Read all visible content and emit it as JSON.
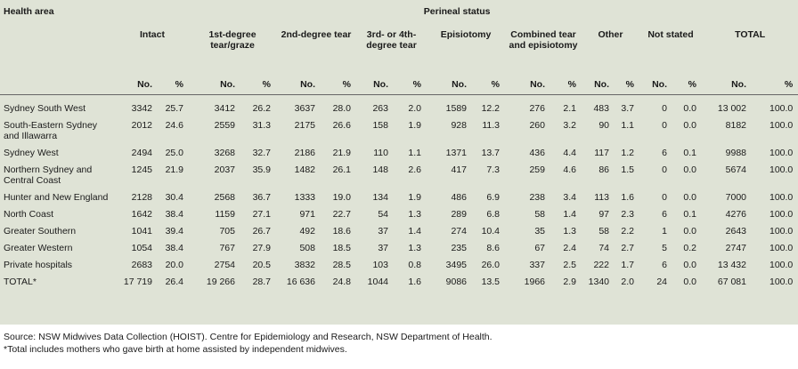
{
  "header": {
    "health_area": "Health area",
    "perineal_status": "Perineal status",
    "groups": [
      "Intact",
      "1st-degree tear/graze",
      "2nd-degree tear",
      "3rd- or 4th-degree tear",
      "Episiotomy",
      "Combined tear and episiotomy",
      "Other",
      "Not stated",
      "TOTAL"
    ],
    "no_label": "No.",
    "pct_label": "%"
  },
  "rows": [
    {
      "area": "Sydney South West",
      "cells": [
        "3342",
        "25.7",
        "3412",
        "26.2",
        "3637",
        "28.0",
        "263",
        "2.0",
        "1589",
        "12.2",
        "276",
        "2.1",
        "483",
        "3.7",
        "0",
        "0.0",
        "13 002",
        "100.0"
      ]
    },
    {
      "area": "South-Eastern Sydney and Illawarra",
      "cells": [
        "2012",
        "24.6",
        "2559",
        "31.3",
        "2175",
        "26.6",
        "158",
        "1.9",
        "928",
        "11.3",
        "260",
        "3.2",
        "90",
        "1.1",
        "0",
        "0.0",
        "8182",
        "100.0"
      ]
    },
    {
      "area": "Sydney West",
      "cells": [
        "2494",
        "25.0",
        "3268",
        "32.7",
        "2186",
        "21.9",
        "110",
        "1.1",
        "1371",
        "13.7",
        "436",
        "4.4",
        "117",
        "1.2",
        "6",
        "0.1",
        "9988",
        "100.0"
      ]
    },
    {
      "area": "Northern Sydney and Central Coast",
      "cells": [
        "1245",
        "21.9",
        "2037",
        "35.9",
        "1482",
        "26.1",
        "148",
        "2.6",
        "417",
        "7.3",
        "259",
        "4.6",
        "86",
        "1.5",
        "0",
        "0.0",
        "5674",
        "100.0"
      ]
    },
    {
      "area": "Hunter and New England",
      "cells": [
        "2128",
        "30.4",
        "2568",
        "36.7",
        "1333",
        "19.0",
        "134",
        "1.9",
        "486",
        "6.9",
        "238",
        "3.4",
        "113",
        "1.6",
        "0",
        "0.0",
        "7000",
        "100.0"
      ]
    },
    {
      "area": "North Coast",
      "cells": [
        "1642",
        "38.4",
        "1159",
        "27.1",
        "971",
        "22.7",
        "54",
        "1.3",
        "289",
        "6.8",
        "58",
        "1.4",
        "97",
        "2.3",
        "6",
        "0.1",
        "4276",
        "100.0"
      ]
    },
    {
      "area": "Greater Southern",
      "cells": [
        "1041",
        "39.4",
        "705",
        "26.7",
        "492",
        "18.6",
        "37",
        "1.4",
        "274",
        "10.4",
        "35",
        "1.3",
        "58",
        "2.2",
        "1",
        "0.0",
        "2643",
        "100.0"
      ]
    },
    {
      "area": "Greater Western",
      "cells": [
        "1054",
        "38.4",
        "767",
        "27.9",
        "508",
        "18.5",
        "37",
        "1.3",
        "235",
        "8.6",
        "67",
        "2.4",
        "74",
        "2.7",
        "5",
        "0.2",
        "2747",
        "100.0"
      ]
    },
    {
      "area": "Private hospitals",
      "cells": [
        "2683",
        "20.0",
        "2754",
        "20.5",
        "3832",
        "28.5",
        "103",
        "0.8",
        "3495",
        "26.0",
        "337",
        "2.5",
        "222",
        "1.7",
        "6",
        "0.0",
        "13 432",
        "100.0"
      ]
    },
    {
      "area": "TOTAL*",
      "cells": [
        "17 719",
        "26.4",
        "19 266",
        "28.7",
        "16 636",
        "24.8",
        "1044",
        "1.6",
        "9086",
        "13.5",
        "1966",
        "2.9",
        "1340",
        "2.0",
        "24",
        "0.0",
        "67 081",
        "100.0"
      ]
    }
  ],
  "notes": {
    "source": "Source: NSW Midwives Data Collection (HOIST). Centre for Epidemiology and Research, NSW Department of Health.",
    "footnote": "*Total includes mothers who gave birth at home assisted by independent midwives."
  },
  "colors": {
    "table_bg": "#dfe3d6",
    "rule": "#666666",
    "text": "#1a1a1a"
  }
}
